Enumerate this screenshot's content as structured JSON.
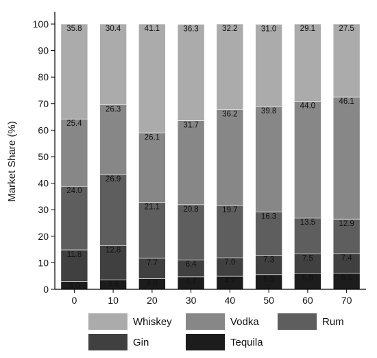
{
  "chart_data": {
    "type": "bar",
    "stacked": true,
    "categories": [
      "0",
      "10",
      "20",
      "30",
      "40",
      "50",
      "60",
      "70"
    ],
    "series": [
      {
        "name": "Tequila",
        "color": "#1c1c1c",
        "values": [
          3.0,
          3.6,
          4.0,
          4.7,
          4.9,
          5.5,
          5.9,
          6.1
        ]
      },
      {
        "name": "Gin",
        "color": "#404040",
        "values": [
          11.8,
          12.8,
          7.7,
          6.4,
          7.0,
          7.3,
          7.5,
          7.4
        ]
      },
      {
        "name": "Rum",
        "color": "#5e5e5e",
        "values": [
          24.0,
          26.9,
          21.1,
          20.8,
          19.7,
          16.3,
          13.5,
          12.9
        ]
      },
      {
        "name": "Vodka",
        "color": "#878787",
        "values": [
          25.4,
          26.3,
          26.1,
          31.7,
          36.2,
          39.8,
          44.0,
          46.1
        ]
      },
      {
        "name": "Whiskey",
        "color": "#ababab",
        "values": [
          35.8,
          30.4,
          41.1,
          36.3,
          32.2,
          31.0,
          29.1,
          27.5
        ]
      }
    ],
    "legend_order": [
      "Whiskey",
      "Vodka",
      "Rum",
      "Gin",
      "Tequila"
    ],
    "legend_placement": "bottom",
    "xlabel": "",
    "ylabel": "Market Share (%)",
    "ylim": [
      0,
      100
    ],
    "yticks": [
      0,
      10,
      20,
      30,
      40,
      50,
      60,
      70,
      80,
      90,
      100
    ],
    "grid": false
  }
}
